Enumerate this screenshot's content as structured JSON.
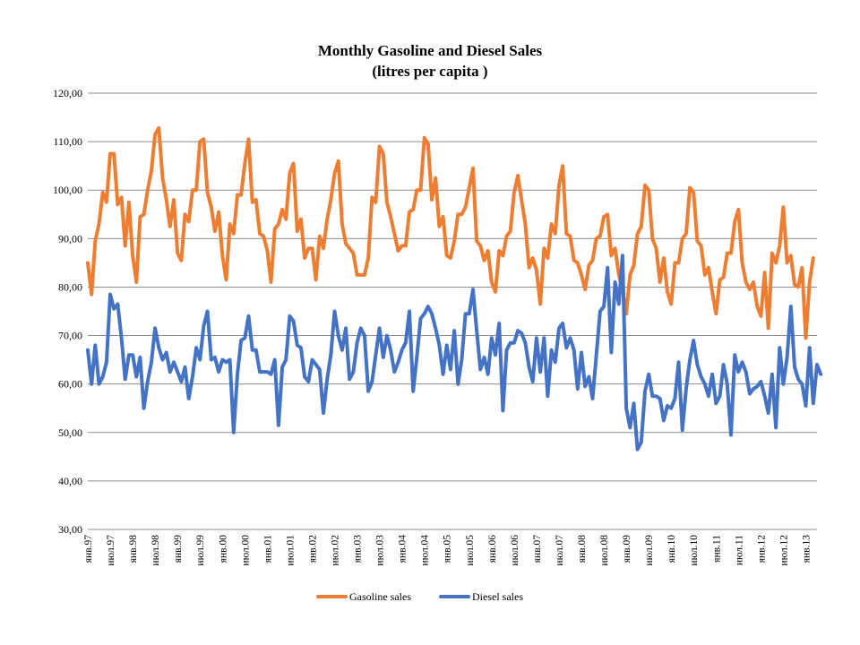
{
  "chart_data": {
    "type": "line",
    "title": "Monthly Gasoline and Diesel Sales",
    "subtitle": "(litres per capita )",
    "xlabel": "",
    "ylabel": "",
    "ylim": [
      30,
      120
    ],
    "yticks": [
      "30,00",
      "40,00",
      "50,00",
      "60,00",
      "70,00",
      "80,00",
      "90,00",
      "100,00",
      "110,00",
      "120,00"
    ],
    "x_start": "1997-01",
    "x_end": "2013-04",
    "xtick_labels": [
      "янв.97",
      "июл.97",
      "янв.98",
      "июл.98",
      "янв.99",
      "июл.99",
      "янв.00",
      "июл.00",
      "янв.01",
      "июл.01",
      "янв.02",
      "июл.02",
      "янв.03",
      "июл.03",
      "янв.04",
      "июл.04",
      "янв.05",
      "июл.05",
      "янв.06",
      "июл.06",
      "янв.07",
      "июл.07",
      "янв.08",
      "июл.08",
      "янв.09",
      "июл.09",
      "янв.10",
      "июл.10",
      "янв.11",
      "июл.11",
      "янв.12",
      "июл.12",
      "янв.13"
    ],
    "grid": true,
    "legend_position": "bottom",
    "series": [
      {
        "name": "Gasoline sales",
        "color": "#ED7D31",
        "values": [
          85.0,
          78.5,
          89.5,
          93.0,
          99.5,
          97.5,
          107.5,
          107.5,
          97.0,
          98.5,
          88.5,
          97.5,
          86.5,
          81.0,
          94.5,
          95.0,
          100.0,
          104.0,
          111.5,
          112.8,
          102.5,
          98.0,
          92.5,
          98.0,
          87.0,
          85.5,
          95.0,
          93.5,
          100.0,
          100.0,
          110.0,
          110.5,
          99.5,
          96.5,
          91.5,
          95.5,
          86.5,
          81.5,
          93.0,
          91.0,
          99.0,
          99.0,
          105.5,
          110.5,
          97.5,
          98.0,
          91.0,
          90.5,
          87.5,
          81.0,
          92.0,
          93.0,
          96.0,
          94.0,
          103.5,
          105.5,
          91.5,
          94.0,
          86.0,
          88.0,
          88.0,
          81.5,
          90.5,
          88.0,
          94.0,
          98.0,
          103.5,
          106.0,
          93.0,
          89.0,
          88.0,
          87.0,
          82.5,
          82.5,
          82.5,
          86.0,
          98.5,
          97.5,
          109.0,
          107.5,
          97.5,
          94.5,
          91.0,
          87.5,
          88.5,
          88.5,
          95.5,
          96.0,
          100.0,
          100.0,
          110.8,
          109.5,
          98.0,
          102.5,
          92.5,
          94.5,
          86.5,
          86.0,
          89.5,
          95.0,
          95.0,
          96.5,
          100.5,
          104.5,
          89.5,
          88.5,
          85.5,
          87.5,
          81.0,
          79.0,
          87.5,
          86.5,
          90.5,
          91.5,
          99.5,
          103.0,
          98.0,
          93.0,
          84.0,
          86.0,
          83.5,
          76.5,
          88.0,
          86.0,
          93.0,
          91.0,
          101.0,
          105.0,
          91.0,
          90.5,
          85.5,
          85.0,
          82.5,
          79.5,
          84.5,
          85.5,
          90.0,
          90.5,
          94.5,
          95.0,
          86.5,
          88.0,
          82.5,
          79.5,
          74.5,
          82.5,
          84.5,
          91.0,
          92.5,
          101.0,
          100.0,
          90.0,
          88.0,
          81.0,
          86.0,
          79.0,
          76.5,
          85.0,
          85.0,
          90.0,
          91.0,
          100.5,
          99.5,
          89.5,
          88.5,
          82.5,
          84.0,
          79.0,
          74.5,
          81.5,
          82.0,
          87.0,
          87.0,
          93.5,
          96.0,
          85.0,
          81.0,
          79.5,
          81.0,
          76.0,
          74.0,
          83.0,
          71.5,
          87.0,
          85.0,
          88.5,
          96.5,
          85.0,
          86.5,
          80.5,
          80.0,
          84.0,
          69.5,
          81.0,
          86.0
        ]
      },
      {
        "name": "Diesel sales",
        "color": "#4472C4",
        "values": [
          67.0,
          60.0,
          68.0,
          60.0,
          61.5,
          64.5,
          78.5,
          75.5,
          76.5,
          69.5,
          61.0,
          66.0,
          66.0,
          61.5,
          65.5,
          55.0,
          60.5,
          64.5,
          71.5,
          67.5,
          65.0,
          66.5,
          62.5,
          64.5,
          62.5,
          60.5,
          63.5,
          57.0,
          61.5,
          67.5,
          65.0,
          72.0,
          75.0,
          65.0,
          65.5,
          62.5,
          65.0,
          64.5,
          65.0,
          50.0,
          62.0,
          69.0,
          69.5,
          74.0,
          67.0,
          67.0,
          62.5,
          62.5,
          62.5,
          62.0,
          65.0,
          51.5,
          63.5,
          65.0,
          74.0,
          73.0,
          68.0,
          67.5,
          61.5,
          60.5,
          65.0,
          64.0,
          63.0,
          54.0,
          61.0,
          66.0,
          75.0,
          70.0,
          67.0,
          71.5,
          61.0,
          62.5,
          68.5,
          71.5,
          70.0,
          58.5,
          60.5,
          66.0,
          71.5,
          65.5,
          70.0,
          67.0,
          62.5,
          64.5,
          67.0,
          68.5,
          75.0,
          58.5,
          65.5,
          73.5,
          74.5,
          76.0,
          74.5,
          71.5,
          68.0,
          62.0,
          68.0,
          63.0,
          71.0,
          60.0,
          65.0,
          74.5,
          74.5,
          79.5,
          71.0,
          63.0,
          65.5,
          62.0,
          69.5,
          66.0,
          72.5,
          54.5,
          67.0,
          68.5,
          68.5,
          71.0,
          70.5,
          68.5,
          63.5,
          60.5,
          69.5,
          62.5,
          69.5,
          57.5,
          67.0,
          64.5,
          71.5,
          72.5,
          67.5,
          69.5,
          67.0,
          59.0,
          66.5,
          59.5,
          61.5,
          57.0,
          66.0,
          75.0,
          76.0,
          84.0,
          66.5,
          81.0,
          76.5,
          86.5,
          55.0,
          51.0,
          56.0,
          46.5,
          48.0,
          58.5,
          62.0,
          57.5,
          57.5,
          57.0,
          52.5,
          55.5,
          55.0,
          57.0,
          64.5,
          50.5,
          59.0,
          65.0,
          69.0,
          64.0,
          61.5,
          60.0,
          57.5,
          62.0,
          56.0,
          57.5,
          64.0,
          60.0,
          49.5,
          66.0,
          62.5,
          64.5,
          62.5,
          58.0,
          59.0,
          59.5,
          60.5,
          57.5,
          54.0,
          62.0,
          51.0,
          67.5,
          60.0,
          65.5,
          76.0,
          63.5,
          61.0,
          60.0,
          55.5,
          67.5,
          56.0,
          64.0,
          62.0
        ]
      }
    ]
  }
}
